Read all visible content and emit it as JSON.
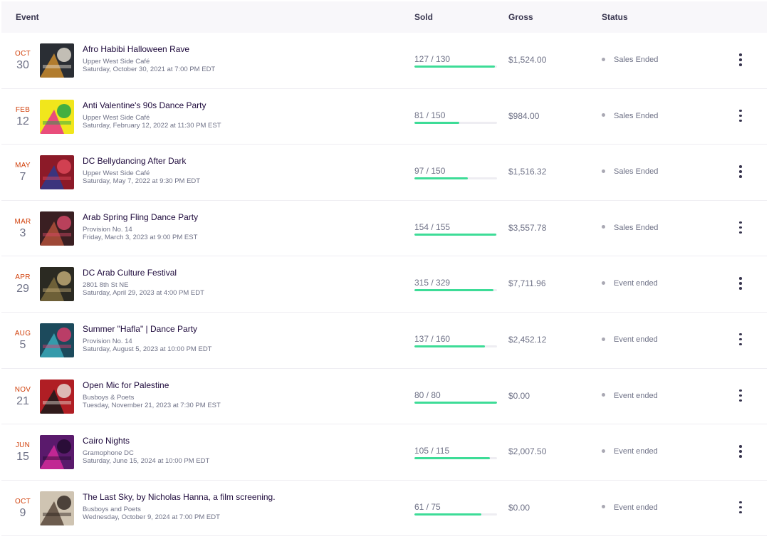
{
  "header": {
    "event": "Event",
    "sold": "Sold",
    "gross": "Gross",
    "status": "Status"
  },
  "events": [
    {
      "month": "OCT",
      "day": "30",
      "title": "Afro Habibi Halloween Rave",
      "venue": "Upper West Side Café",
      "when": "Saturday, October 30, 2021 at 7:00 PM EDT",
      "sold_label": "127 / 130",
      "sold": 127,
      "capacity": 130,
      "gross": "$1,524.00",
      "status": "Sales Ended",
      "thumb_icon": "halloween-rave-thumbnail",
      "thumb_colors": [
        "#2a2e34",
        "#c98a2e",
        "#e8e2d6"
      ]
    },
    {
      "month": "FEB",
      "day": "12",
      "title": "Anti Valentine's 90s Dance Party",
      "venue": "Upper West Side Café",
      "when": "Saturday, February 12, 2022 at 11:30 PM EST",
      "sold_label": "81 / 150",
      "sold": 81,
      "capacity": 150,
      "gross": "$984.00",
      "status": "Sales Ended",
      "thumb_icon": "neon-dance-party-thumbnail",
      "thumb_colors": [
        "#f1e61c",
        "#e8318c",
        "#19a14a"
      ]
    },
    {
      "month": "MAY",
      "day": "7",
      "title": "DC Bellydancing After Dark",
      "venue": "Upper West Side Café",
      "when": "Saturday, May 7, 2022 at 9:30 PM EDT",
      "sold_label": "97 / 150",
      "sold": 97,
      "capacity": 150,
      "gross": "$1,516.32",
      "status": "Sales Ended",
      "thumb_icon": "bellydancing-thumbnail",
      "thumb_colors": [
        "#8c1a28",
        "#2d3a8c",
        "#e24a5b"
      ]
    },
    {
      "month": "MAR",
      "day": "3",
      "title": "Arab Spring Fling Dance Party",
      "venue": "Provision No. 14",
      "when": "Friday, March 3, 2023 at 9:00 PM EST",
      "sold_label": "154 / 155",
      "sold": 154,
      "capacity": 155,
      "gross": "$3,557.78",
      "status": "Sales Ended",
      "thumb_icon": "spring-fling-thumbnail",
      "thumb_colors": [
        "#3a1f22",
        "#b0503a",
        "#d94a6a"
      ]
    },
    {
      "month": "APR",
      "day": "29",
      "title": "DC Arab Culture Festival",
      "venue": "2801 8th St NE",
      "when": "Saturday, April 29, 2023 at 4:00 PM EDT",
      "sold_label": "315 / 329",
      "sold": 315,
      "capacity": 329,
      "gross": "$7,711.96",
      "status": "Event ended",
      "thumb_icon": "culture-festival-thumbnail",
      "thumb_colors": [
        "#2b2a22",
        "#7a6a3c",
        "#c8b07a"
      ]
    },
    {
      "month": "AUG",
      "day": "5",
      "title": "Summer \"Hafla\" | Dance Party",
      "venue": "Provision No. 14",
      "when": "Saturday, August 5, 2023 at 10:00 PM EDT",
      "sold_label": "137 / 160",
      "sold": 137,
      "capacity": 160,
      "gross": "$2,452.12",
      "status": "Event ended",
      "thumb_icon": "hafla-thumbnail",
      "thumb_colors": [
        "#1c4a5c",
        "#3aa8b8",
        "#e23a6a"
      ]
    },
    {
      "month": "NOV",
      "day": "21",
      "title": "Open Mic for Palestine",
      "venue": "Busboys & Poets",
      "when": "Tuesday, November 21, 2023 at 7:30 PM EST",
      "sold_label": "80 / 80",
      "sold": 80,
      "capacity": 80,
      "gross": "$0.00",
      "status": "Event ended",
      "thumb_icon": "open-mic-thumbnail",
      "thumb_colors": [
        "#b01e24",
        "#1a1a1a",
        "#e8e0d8"
      ]
    },
    {
      "month": "JUN",
      "day": "15",
      "title": "Cairo Nights",
      "venue": "Gramophone DC",
      "when": "Saturday, June 15, 2024 at 10:00 PM EDT",
      "sold_label": "105 / 115",
      "sold": 105,
      "capacity": 115,
      "gross": "$2,007.50",
      "status": "Event ended",
      "thumb_icon": "cairo-nights-thumbnail",
      "thumb_colors": [
        "#5a1a6c",
        "#d42a9a",
        "#1e0a2c"
      ]
    },
    {
      "month": "OCT",
      "day": "9",
      "title": "The Last Sky, by Nicholas Hanna, a film screening.",
      "venue": "Busboys and Poets",
      "when": "Wednesday, October 9, 2024 at 7:00 PM EDT",
      "sold_label": "61 / 75",
      "sold": 61,
      "capacity": 75,
      "gross": "$0.00",
      "status": "Event ended",
      "thumb_icon": "film-screening-thumbnail",
      "thumb_colors": [
        "#cfc4b2",
        "#5a4a3c",
        "#2a221c"
      ]
    }
  ]
}
